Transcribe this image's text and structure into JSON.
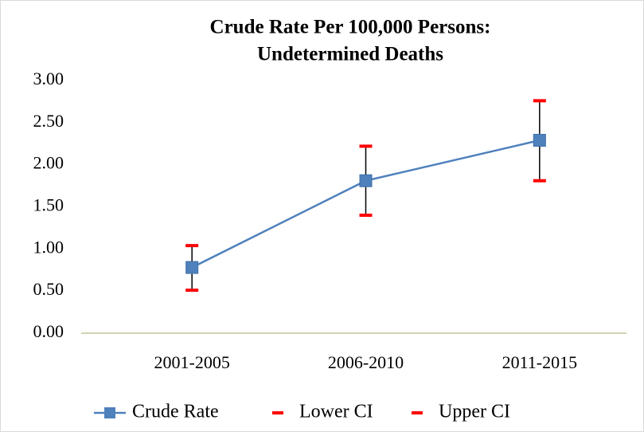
{
  "chart_data": {
    "type": "line",
    "title": [
      "Crude Rate Per 100,000 Persons:",
      "Undetermined Deaths"
    ],
    "categories": [
      "2001-2005",
      "2006-2010",
      "2011-2015"
    ],
    "series": [
      {
        "name": "Crude Rate",
        "color": "#4f81bd",
        "values": [
          0.78,
          1.81,
          2.29
        ]
      },
      {
        "name": "Lower CI",
        "color": "#ff0000",
        "values": [
          0.51,
          1.4,
          1.81
        ]
      },
      {
        "name": "Upper CI",
        "color": "#ff0000",
        "values": [
          1.04,
          2.22,
          2.76
        ]
      }
    ],
    "ylim": [
      0,
      3
    ],
    "yticks": [
      {
        "value": 0,
        "label": "0.00"
      },
      {
        "value": 0.5,
        "label": "0.50"
      },
      {
        "value": 1,
        "label": "1.00"
      },
      {
        "value": 1.5,
        "label": "1.50"
      },
      {
        "value": 2,
        "label": "2.00"
      },
      {
        "value": 2.5,
        "label": "2.50"
      },
      {
        "value": 3,
        "label": "3.00"
      }
    ],
    "legend": "bottom"
  }
}
